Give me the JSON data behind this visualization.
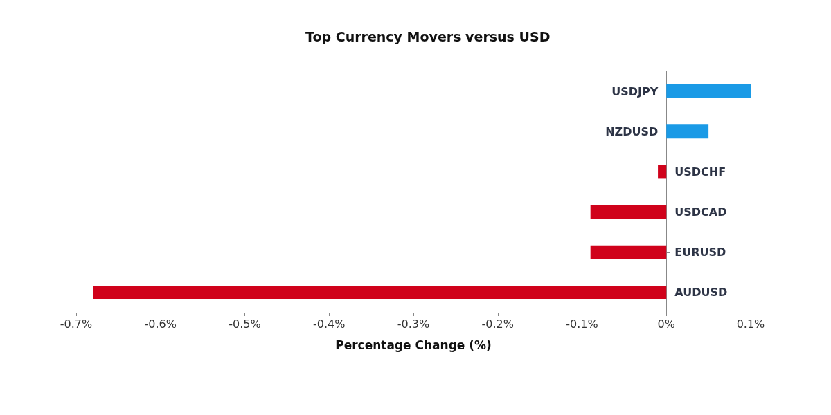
{
  "chart_data": {
    "type": "bar",
    "orientation": "horizontal",
    "title": "Top Currency Movers versus USD",
    "xlabel": "Percentage Change (%)",
    "categories": [
      "USDJPY",
      "NZDUSD",
      "USDCHF",
      "USDCAD",
      "EURUSD",
      "AUDUSD"
    ],
    "values": [
      0.1,
      0.05,
      -0.01,
      -0.09,
      -0.09,
      -0.68
    ],
    "colors": [
      "#1a9ae6",
      "#1a9ae6",
      "#d0021b",
      "#d0021b",
      "#d0021b",
      "#d0021b"
    ],
    "xlim": [
      -0.7,
      0.1
    ],
    "xticks": [
      {
        "value": -0.7,
        "label": "-0.7%"
      },
      {
        "value": -0.6,
        "label": "-0.6%"
      },
      {
        "value": -0.5,
        "label": "-0.5%"
      },
      {
        "value": -0.4,
        "label": "-0.4%"
      },
      {
        "value": -0.3,
        "label": "-0.3%"
      },
      {
        "value": -0.2,
        "label": "-0.2%"
      },
      {
        "value": -0.1,
        "label": "-0.1%"
      },
      {
        "value": 0,
        "label": "0%"
      },
      {
        "value": 0.1,
        "label": "0.1%"
      }
    ],
    "grid": false
  }
}
